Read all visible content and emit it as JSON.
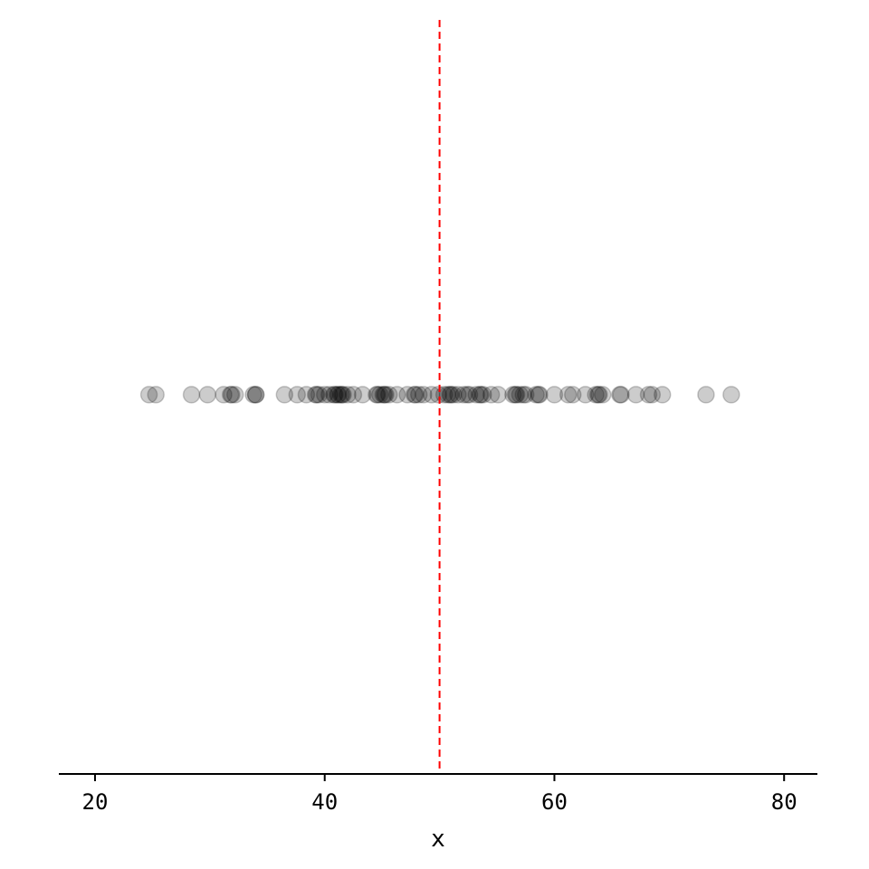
{
  "chart_data": {
    "type": "scatter",
    "title": "",
    "xlabel": "x",
    "ylabel": "",
    "xlim": [
      16.85,
      82.9
    ],
    "xticks": [
      20,
      40,
      60,
      80
    ],
    "tick_labels": [
      "20",
      "40",
      "60",
      "80"
    ],
    "grid": false,
    "legend": "none",
    "point_color": "#000000",
    "point_alpha": 0.2,
    "reference_line": {
      "x": 50,
      "color": "#ff0000",
      "style": "dashed"
    },
    "x": [
      24.7,
      25.3,
      28.4,
      29.8,
      31.2,
      31.8,
      32.2,
      33.8,
      34.0,
      36.5,
      37.6,
      38.4,
      39.2,
      39.5,
      40.0,
      40.4,
      40.9,
      41.2,
      41.5,
      42.0,
      42.5,
      43.3,
      44.5,
      44.8,
      45.3,
      45.6,
      46.3,
      47.2,
      47.8,
      48.2,
      48.6,
      49.3,
      49.9,
      50.4,
      50.7,
      51.2,
      51.6,
      52.1,
      52.6,
      53.2,
      53.5,
      53.8,
      54.5,
      55.1,
      56.4,
      56.7,
      57.0,
      57.5,
      58.4,
      58.7,
      60.0,
      61.2,
      61.6,
      62.7,
      63.6,
      63.9,
      64.2,
      65.7,
      65.8,
      67.1,
      68.2,
      68.5,
      69.4,
      73.2,
      75.4,
      39.3,
      40.8,
      41.4,
      44.6,
      45.1,
      47.9,
      50.9,
      52.4,
      53.6,
      56.6,
      57.3,
      58.6,
      63.8,
      31.9,
      34.0,
      41.1,
      41.6,
      45.2,
      51.0
    ]
  }
}
